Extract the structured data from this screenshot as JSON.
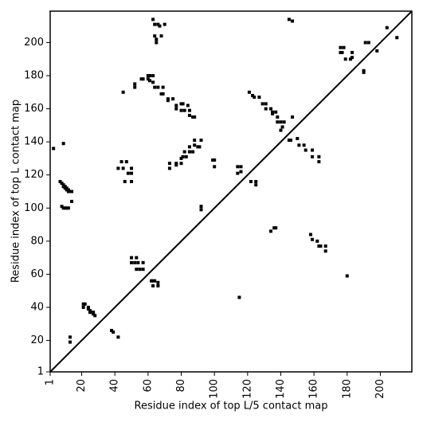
{
  "chart_data": {
    "type": "scatter",
    "xlabel": "Residue index of top L/5 contact map",
    "ylabel": "Residue index of top L contact map",
    "xlim": [
      1,
      219
    ],
    "ylim": [
      1,
      219
    ],
    "xticks": [
      1,
      20,
      40,
      60,
      80,
      100,
      120,
      140,
      160,
      180,
      200
    ],
    "yticks": [
      1,
      20,
      40,
      60,
      80,
      100,
      120,
      140,
      160,
      180,
      200
    ],
    "color": "#000000",
    "marker": "square",
    "x": [
      3,
      9,
      7,
      8,
      9,
      10,
      11,
      12,
      13,
      14,
      9,
      10,
      11,
      12,
      8,
      9,
      10,
      11,
      12,
      14,
      44,
      47,
      42,
      45,
      50,
      48,
      50,
      46,
      50,
      45,
      50,
      53,
      50,
      52,
      54,
      57,
      53,
      55,
      57,
      52,
      52,
      56,
      57,
      60,
      61,
      63,
      60,
      61,
      63,
      64,
      66,
      69,
      68,
      69,
      72,
      72,
      75,
      77,
      77,
      80,
      81,
      80,
      82,
      84,
      85,
      85,
      87,
      88,
      63,
      64,
      66,
      67,
      70,
      64,
      65,
      65,
      68,
      73,
      73,
      77,
      77,
      80,
      80,
      81,
      83,
      82,
      85,
      85,
      87,
      88,
      88,
      90,
      92,
      91,
      99,
      100,
      100,
      92,
      92,
      62,
      63,
      64,
      63,
      66,
      66,
      114,
      116,
      114,
      116,
      121,
      123,
      124,
      127,
      129,
      131,
      131,
      134,
      135,
      137,
      135,
      138,
      138,
      140,
      142,
      140,
      141,
      147,
      146,
      145,
      147,
      176,
      178,
      176,
      177,
      179,
      182,
      183,
      183,
      190,
      190,
      191,
      193,
      198,
      204,
      210,
      21,
      22,
      21,
      24,
      24,
      25,
      26,
      27,
      28,
      25,
      27,
      13,
      13,
      38,
      39,
      42,
      115,
      122,
      125,
      125,
      134,
      136,
      137,
      145,
      150,
      151,
      154,
      155,
      159,
      159,
      163,
      163,
      158,
      159,
      162,
      163,
      164,
      167,
      167,
      180
    ],
    "values": [
      136,
      139,
      116,
      115,
      114,
      113,
      112,
      111,
      110,
      110,
      113,
      112,
      111,
      110,
      101,
      100,
      100,
      100,
      100,
      104,
      128,
      128,
      124,
      124,
      124,
      121,
      121,
      116,
      116,
      170,
      70,
      70,
      67,
      67,
      67,
      67,
      63,
      63,
      63,
      175,
      173,
      178,
      178,
      180,
      180,
      180,
      178,
      177,
      176,
      173,
      173,
      173,
      169,
      169,
      166,
      165,
      166,
      162,
      160,
      163,
      163,
      159,
      159,
      162,
      159,
      156,
      155,
      155,
      214,
      211,
      211,
      210,
      211,
      204,
      202,
      200,
      204,
      127,
      124,
      127,
      126,
      127,
      130,
      131,
      131,
      134,
      134,
      137,
      134,
      138,
      141,
      137,
      141,
      137,
      129,
      129,
      125,
      101,
      99,
      56,
      56,
      56,
      53,
      53,
      55,
      125,
      125,
      121,
      122,
      170,
      168,
      167,
      167,
      163,
      163,
      160,
      160,
      158,
      158,
      157,
      155,
      152,
      152,
      152,
      147,
      149,
      155,
      141,
      214,
      213,
      197,
      197,
      194,
      194,
      190,
      190,
      191,
      194,
      183,
      182,
      200,
      200,
      195,
      209,
      203,
      42,
      42,
      40,
      40,
      39,
      38,
      37,
      36,
      35,
      37,
      37,
      22,
      19,
      26,
      25,
      22,
      46,
      116,
      116,
      114,
      86,
      88,
      88,
      141,
      142,
      138,
      138,
      135,
      135,
      131,
      131,
      128,
      84,
      81,
      80,
      77,
      77,
      77,
      74,
      59
    ]
  }
}
